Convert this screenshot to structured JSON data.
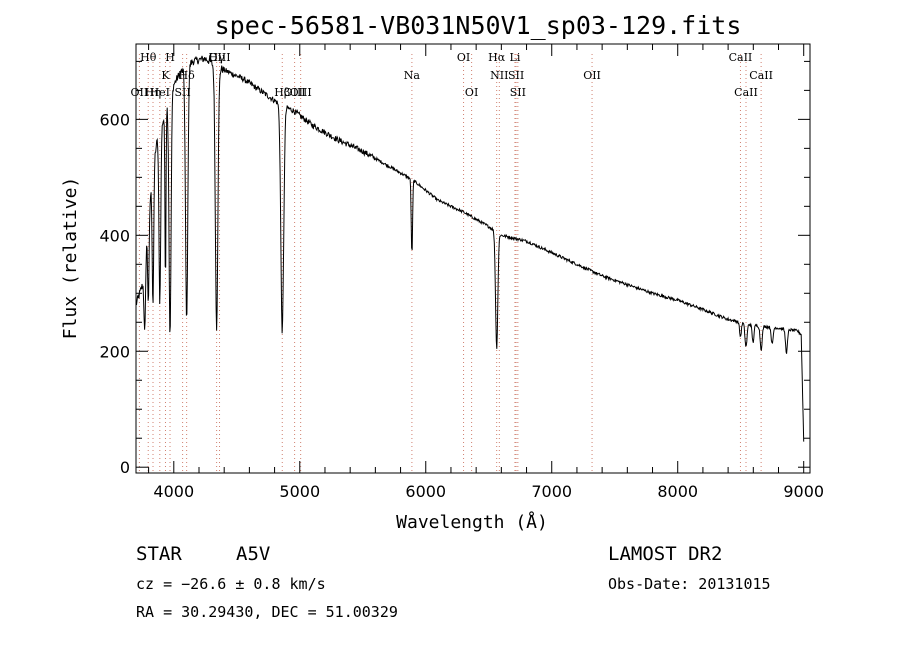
{
  "chart_data": {
    "type": "line",
    "title": "spec-56581-VB031N50V1_sp03-129.fits",
    "xlabel": "Wavelength (Å)",
    "ylabel": "Flux (relative)",
    "xlim": [
      3700,
      9050
    ],
    "ylim": [
      -10,
      730
    ],
    "xticks": [
      4000,
      5000,
      6000,
      7000,
      8000,
      9000
    ],
    "yticks": [
      0,
      200,
      400,
      600
    ],
    "grid": false,
    "legend": "none",
    "series_color": "#000000",
    "marker_line_color": "#d08070",
    "continuum": [
      [
        3700,
        280
      ],
      [
        3730,
        300
      ],
      [
        3760,
        320
      ],
      [
        3790,
        420
      ],
      [
        3820,
        480
      ],
      [
        3850,
        540
      ],
      [
        3880,
        580
      ],
      [
        3920,
        600
      ],
      [
        3960,
        640
      ],
      [
        4000,
        660
      ],
      [
        4050,
        680
      ],
      [
        4150,
        700
      ],
      [
        4250,
        705
      ],
      [
        4350,
        690
      ],
      [
        4450,
        680
      ],
      [
        4550,
        670
      ],
      [
        4650,
        655
      ],
      [
        4750,
        640
      ],
      [
        4850,
        625
      ],
      [
        4950,
        615
      ],
      [
        5100,
        590
      ],
      [
        5300,
        565
      ],
      [
        5500,
        545
      ],
      [
        5700,
        520
      ],
      [
        5900,
        495
      ],
      [
        6100,
        460
      ],
      [
        6300,
        440
      ],
      [
        6500,
        415
      ],
      [
        6600,
        400
      ],
      [
        6800,
        390
      ],
      [
        7000,
        370
      ],
      [
        7200,
        350
      ],
      [
        7400,
        330
      ],
      [
        7600,
        315
      ],
      [
        7800,
        300
      ],
      [
        8000,
        288
      ],
      [
        8200,
        272
      ],
      [
        8400,
        255
      ],
      [
        8600,
        245
      ],
      [
        8800,
        240
      ],
      [
        8950,
        235
      ],
      [
        9000,
        225
      ]
    ],
    "absorption": [
      {
        "center": 3770,
        "depth": 120,
        "width": 6
      },
      {
        "center": 3798,
        "depth": 150,
        "width": 6
      },
      {
        "center": 3835,
        "depth": 230,
        "width": 6
      },
      {
        "center": 3889,
        "depth": 300,
        "width": 7
      },
      {
        "center": 3934,
        "depth": 300,
        "width": 4
      },
      {
        "center": 3970,
        "depth": 420,
        "width": 8
      },
      {
        "center": 4102,
        "depth": 440,
        "width": 9
      },
      {
        "center": 4340,
        "depth": 450,
        "width": 10
      },
      {
        "center": 4861,
        "depth": 390,
        "width": 11
      },
      {
        "center": 5890,
        "depth": 130,
        "width": 5
      },
      {
        "center": 6563,
        "depth": 200,
        "width": 9
      },
      {
        "center": 8498,
        "depth": 25,
        "width": 7
      },
      {
        "center": 8542,
        "depth": 40,
        "width": 8
      },
      {
        "center": 8598,
        "depth": 30,
        "width": 7
      },
      {
        "center": 8662,
        "depth": 40,
        "width": 8
      },
      {
        "center": 8750,
        "depth": 30,
        "width": 7
      },
      {
        "center": 8863,
        "depth": 40,
        "width": 8
      }
    ],
    "spectral_lines": [
      {
        "x": 3727,
        "label": "OII",
        "row": 3
      },
      {
        "x": 3797,
        "label": "Hθ",
        "row": 1
      },
      {
        "x": 3835,
        "label": "Hη",
        "row": 3
      },
      {
        "x": 3889,
        "label": "HeI",
        "row": 3
      },
      {
        "x": 3934,
        "label": "K",
        "row": 2
      },
      {
        "x": 3970,
        "label": "H",
        "row": 1
      },
      {
        "x": 4070,
        "label": "SII",
        "row": 3
      },
      {
        "x": 4102,
        "label": "Hδ",
        "row": 2
      },
      {
        "x": 4340,
        "label": "Hγ",
        "row": 1
      },
      {
        "x": 4363,
        "label": "OIII",
        "row": 1
      },
      {
        "x": 4861,
        "label": "Hβ",
        "row": 3
      },
      {
        "x": 4959,
        "label": "OIII",
        "row": 3
      },
      {
        "x": 5007,
        "label": "OIII",
        "row": 3
      },
      {
        "x": 5890,
        "label": "Na",
        "row": 2
      },
      {
        "x": 6300,
        "label": "OI",
        "row": 1
      },
      {
        "x": 6364,
        "label": "OI",
        "row": 3
      },
      {
        "x": 6563,
        "label": "Hα",
        "row": 1
      },
      {
        "x": 6584,
        "label": "NII",
        "row": 2
      },
      {
        "x": 6708,
        "label": "Li",
        "row": 1
      },
      {
        "x": 6717,
        "label": "SII",
        "row": 2
      },
      {
        "x": 6731,
        "label": "SII",
        "row": 3
      },
      {
        "x": 7320,
        "label": "OII",
        "row": 2
      },
      {
        "x": 8498,
        "label": "CaII",
        "row": 1
      },
      {
        "x": 8542,
        "label": "CaII",
        "row": 3
      },
      {
        "x": 8662,
        "label": "CaII",
        "row": 2
      }
    ]
  },
  "info": {
    "object_class": "STAR",
    "subclass": "A5V",
    "survey": "LAMOST DR2",
    "cz": "cz = −26.6 ± 0.8 km/s",
    "obs_date": "Obs-Date: 20131015",
    "coords": "RA =  30.29430, DEC =  51.00329"
  }
}
